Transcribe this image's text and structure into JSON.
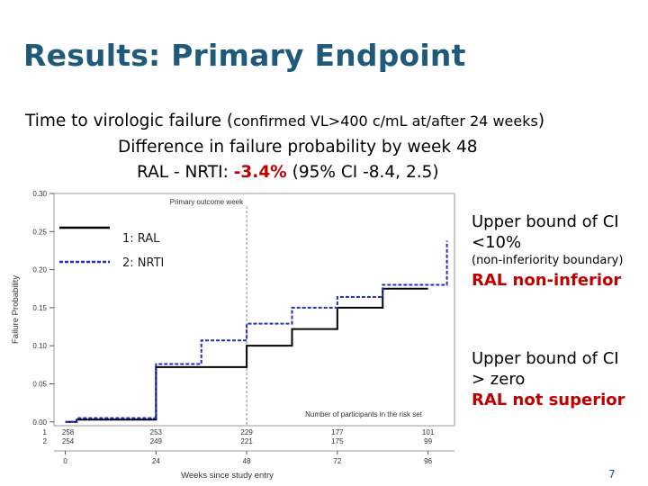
{
  "slide": {
    "title": "Results: Primary Endpoint",
    "subtitle1_a": "Time to virologic failure (",
    "subtitle1_b": "confirmed VL>400 c/mL at/after 24 weeks",
    "subtitle1_c": ")",
    "subtitle2": "Difference in failure probability by week 48",
    "subtitle3_a": "RAL - NRTI: ",
    "subtitle3_b": "-3.4%",
    "subtitle3_c": " (95% CI -8.4, 2.5)",
    "side_1a": "Upper bound of CI",
    "side_1b": "<10%",
    "side_1c": "(non-inferiority boundary)",
    "side_1d": "RAL non-inferior",
    "side_2a": "Upper bound of CI",
    "side_2b": "> zero",
    "side_2c": "RAL not superior",
    "page_number": "7",
    "colors": {
      "title": "#1f5a7a",
      "highlight": "#c00000",
      "ral": "#000000",
      "nrti": "#1f2fbf"
    }
  },
  "chart_data": {
    "type": "line",
    "step": true,
    "xlabel": "Weeks since study entry",
    "ylabel": "Failure Probability",
    "x_ticks": [
      0,
      24,
      48,
      72,
      96
    ],
    "y_ticks": [
      "0.00",
      "0.05",
      "0.10",
      "0.15",
      "0.20",
      "0.25",
      "0.30"
    ],
    "xlim": [
      -3,
      103
    ],
    "ylim": [
      -0.005,
      0.3
    ],
    "reference_line": {
      "x": 48,
      "label": "Primary outcome week"
    },
    "legend": [
      "1: RAL",
      "2: NRTI"
    ],
    "series": [
      {
        "name": "1: RAL",
        "color": "#000000",
        "dashed": false,
        "x": [
          0,
          3,
          16,
          24,
          36,
          48,
          60,
          72,
          84,
          96
        ],
        "y": [
          0.0,
          0.003,
          0.003,
          0.072,
          0.072,
          0.1,
          0.122,
          0.15,
          0.175,
          0.175
        ]
      },
      {
        "name": "2: NRTI",
        "color": "#1f2fbf",
        "dashed": true,
        "x": [
          0,
          3,
          16,
          24,
          36,
          48,
          60,
          72,
          84,
          96,
          101
        ],
        "y": [
          0.0,
          0.005,
          0.005,
          0.076,
          0.107,
          0.129,
          0.15,
          0.164,
          0.18,
          0.18,
          0.238
        ]
      }
    ],
    "risk_set": {
      "title": "Number of participants in the risk set",
      "rows": [
        {
          "id": "1",
          "values": [
            "258",
            "253",
            "229",
            "177",
            "101"
          ]
        },
        {
          "id": "2",
          "values": [
            "254",
            "249",
            "221",
            "175",
            "99"
          ]
        }
      ]
    }
  }
}
